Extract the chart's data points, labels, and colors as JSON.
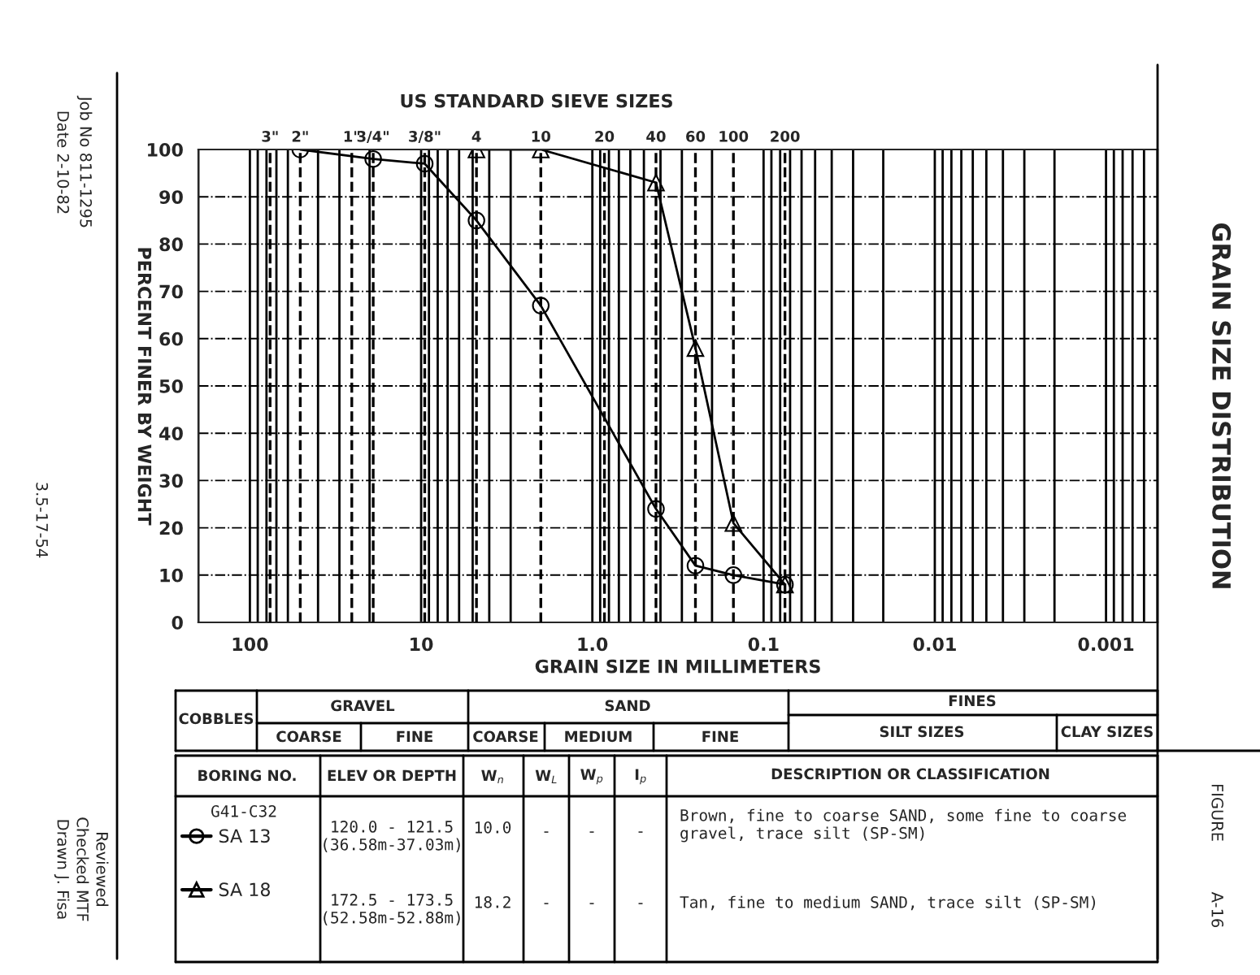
{
  "chart_data": {
    "type": "line",
    "title": "GRAIN SIZE DISTRIBUTION",
    "subtitle": "US STANDARD SIEVE SIZES",
    "xlabel": "GRAIN SIZE IN MILLIMETERS",
    "ylabel": "PERCENT FINER BY WEIGHT",
    "log": "x",
    "xlim": [
      200,
      0.0005
    ],
    "xticks": [
      100,
      10,
      {
        "value": 1,
        "label": "1.0"
      },
      0.1,
      0.01,
      0.001
    ],
    "ylim": [
      0,
      100
    ],
    "yticks": [
      0,
      10,
      20,
      30,
      40,
      50,
      60,
      70,
      80,
      90,
      100
    ],
    "grid": true,
    "legend": "bottom left",
    "line_style": "solid",
    "series": [
      {
        "name": "SA 13",
        "color": "#000000",
        "marker": "circle",
        "x": [
          50.8,
          19.05,
          9.525,
          4.75,
          2.0,
          0.425,
          0.25,
          0.15,
          0.075
        ],
        "values": [
          100,
          98,
          97,
          85,
          67,
          24,
          12,
          10,
          8
        ]
      },
      {
        "name": "SA 18",
        "color": "#000000",
        "marker": "triangle",
        "x": [
          4.75,
          2.0,
          0.425,
          0.25,
          0.15,
          0.075
        ],
        "values": [
          100,
          100,
          93,
          58,
          21,
          8
        ]
      }
    ],
    "ref_lines": [
      {
        "axis": "x",
        "value": 76.2,
        "line_style": "dashed"
      },
      {
        "axis": "x",
        "value": 50.8,
        "line_style": "dashed"
      },
      {
        "axis": "x",
        "value": 25.4,
        "line_style": "dashed"
      },
      {
        "axis": "x",
        "value": 19.05,
        "line_style": "dashed"
      },
      {
        "axis": "x",
        "value": 9.525,
        "line_style": "dashed"
      },
      {
        "axis": "x",
        "value": 4.75,
        "line_style": "dashed"
      },
      {
        "axis": "x",
        "value": 2.0,
        "line_style": "dashed"
      },
      {
        "axis": "x",
        "value": 0.85,
        "line_style": "dashed"
      },
      {
        "axis": "x",
        "value": 0.425,
        "line_style": "dashed"
      },
      {
        "axis": "x",
        "value": 0.25,
        "line_style": "dashed"
      },
      {
        "axis": "x",
        "value": 0.15,
        "line_style": "dashed"
      },
      {
        "axis": "x",
        "value": 0.075,
        "line_style": "dashed"
      }
    ],
    "annotations": [
      "COBBLES",
      "GRAVEL",
      "COARSE",
      "FINE",
      "SAND",
      "COARSE",
      "MEDIUM",
      "FINE",
      "FINES",
      "SILT SIZES",
      "CLAY SIZES",
      "BORING NO.",
      "ELEV OR DEPTH",
      "W$_{n}$",
      "W$_{L}$",
      "W$_{p}$",
      "I$_{p}$",
      "DESCRIPTION OR CLASSIFICATION",
      "G41-C32",
      "120.0 - 121.5\n(36.58m-37.03m)",
      "10.0",
      "-",
      "-",
      "-",
      "Brown, fine to coarse SAND, some fine to coarse\ngravel, trace silt (SP-SM)",
      "172.5 - 173.5\n(52.58m-52.88m)",
      "18.2",
      "-",
      "-",
      "-",
      "Tan, fine to medium SAND, trace silt (SP-SM)",
      "Date 2-10-82",
      "Job No 811-1295",
      "3.5-17-54",
      "Drawn J. Fisa",
      "Checked MTF",
      "Reviewed",
      "FIGURE",
      "A-16",
      "3\"",
      "2\"",
      "1\"",
      "3/4\"",
      "3/8\"",
      "4",
      "10",
      "20",
      "40",
      "60",
      "100",
      "200"
    ]
  }
}
